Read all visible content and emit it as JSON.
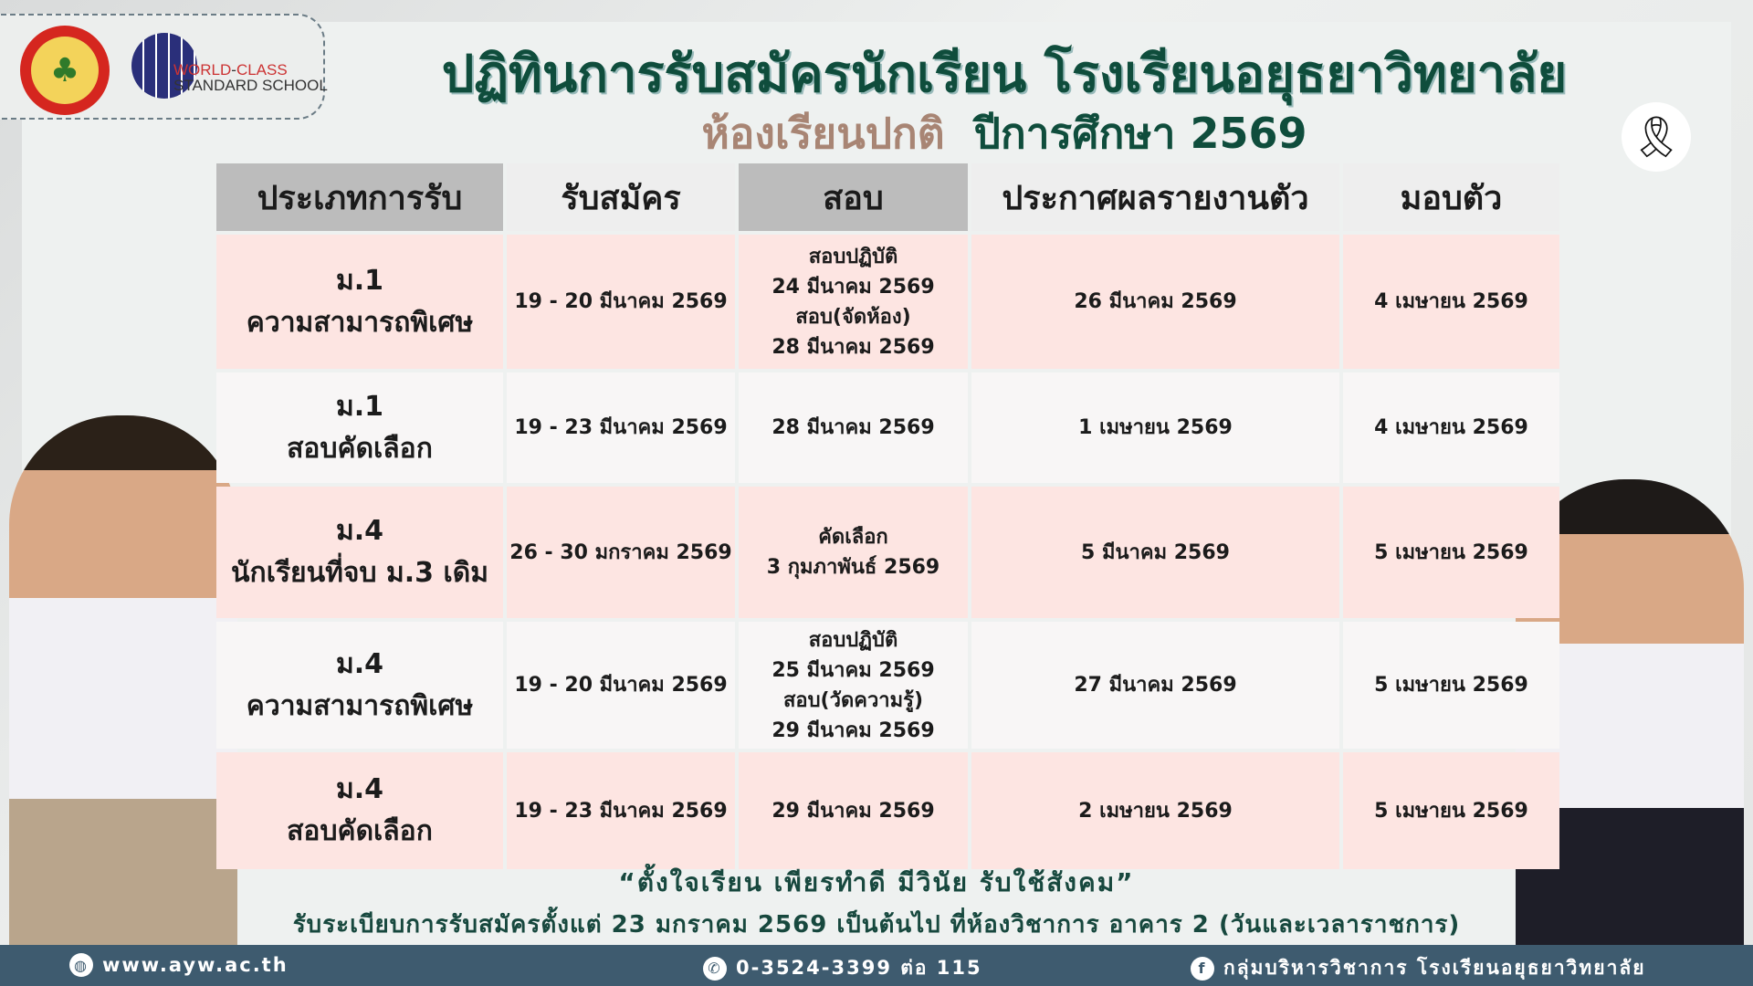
{
  "header": {
    "title": "ปฏิทินการรับสมัครนักเรียน โรงเรียนอยุธยาวิทยาลัย",
    "subtitle_a": "ห้องเรียนปกติ",
    "subtitle_b": "ปีการศึกษา 2569",
    "logo_text_1": "WORLD",
    "logo_text_2": "CLASS",
    "logo_text_3": "STANDARD",
    "logo_text_4": "SCHOOL"
  },
  "table": {
    "headers": [
      "ประเภทการรับ",
      "รับสมัคร",
      "สอบ",
      "ประกาศผลรายงานตัว",
      "มอบตัว"
    ],
    "rows": [
      {
        "level": "ม.1",
        "type": "ความสามารถพิเศษ",
        "apply": "19 - 20 มีนาคม 2569",
        "exam": [
          "สอบปฏิบัติ",
          "24 มีนาคม 2569",
          "สอบ(จัดห้อง)",
          "28 มีนาคม 2569"
        ],
        "announce": "26 มีนาคม 2569",
        "report": "4 เมษายน 2569"
      },
      {
        "level": "ม.1",
        "type": "สอบคัดเลือก",
        "apply": "19 - 23 มีนาคม 2569",
        "exam": [
          "28 มีนาคม 2569"
        ],
        "announce": "1 เมษายน 2569",
        "report": "4 เมษายน 2569"
      },
      {
        "level": "ม.4",
        "type": "นักเรียนที่จบ ม.3 เดิม",
        "apply": "26 - 30 มกราคม 2569",
        "exam": [
          "คัดเลือก",
          "3 กุมภาพันธ์ 2569"
        ],
        "announce": "5  มีนาคม 2569",
        "report": "5 เมษายน 2569"
      },
      {
        "level": "ม.4",
        "type": "ความสามารถพิเศษ",
        "apply": "19 - 20 มีนาคม 2569",
        "exam": [
          "สอบปฏิบัติ",
          "25 มีนาคม 2569",
          "สอบ(วัดความรู้)",
          "29 มีนาคม 2569"
        ],
        "announce": "27  มีนาคม 2569",
        "report": "5 เมษายน 2569"
      },
      {
        "level": "ม.4",
        "type": "สอบคัดเลือก",
        "apply": "19 - 23 มีนาคม 2569",
        "exam": [
          "29 มีนาคม 2569"
        ],
        "announce": "2 เมษายน 2569",
        "report": "5 เมษายน 2569"
      }
    ]
  },
  "quote": "“ตั้งใจเรียน เพียรทำดี มีวินัย รับใช้สังคม”",
  "registration": "รับระเบียบการรับสมัครตั้งแต่ 23 มกราคม 2569 เป็นต้นไป ที่ห้องวิชาการ อาคาร 2 (วันและเวลาราชการ)",
  "footer": {
    "website": "www.ayw.ac.th",
    "phone": "0-3524-3399 ต่อ 115",
    "facebook": "กลุ่มบริหารวิชาการ โรงเรียนอยุธยาวิทยาลัย"
  },
  "colors": {
    "title": "#0f4d3c",
    "subtitle_accent": "#a88574",
    "row_pink": "#fde5e2",
    "row_light": "#f8f6f6",
    "footer": "#3e5b6f"
  }
}
